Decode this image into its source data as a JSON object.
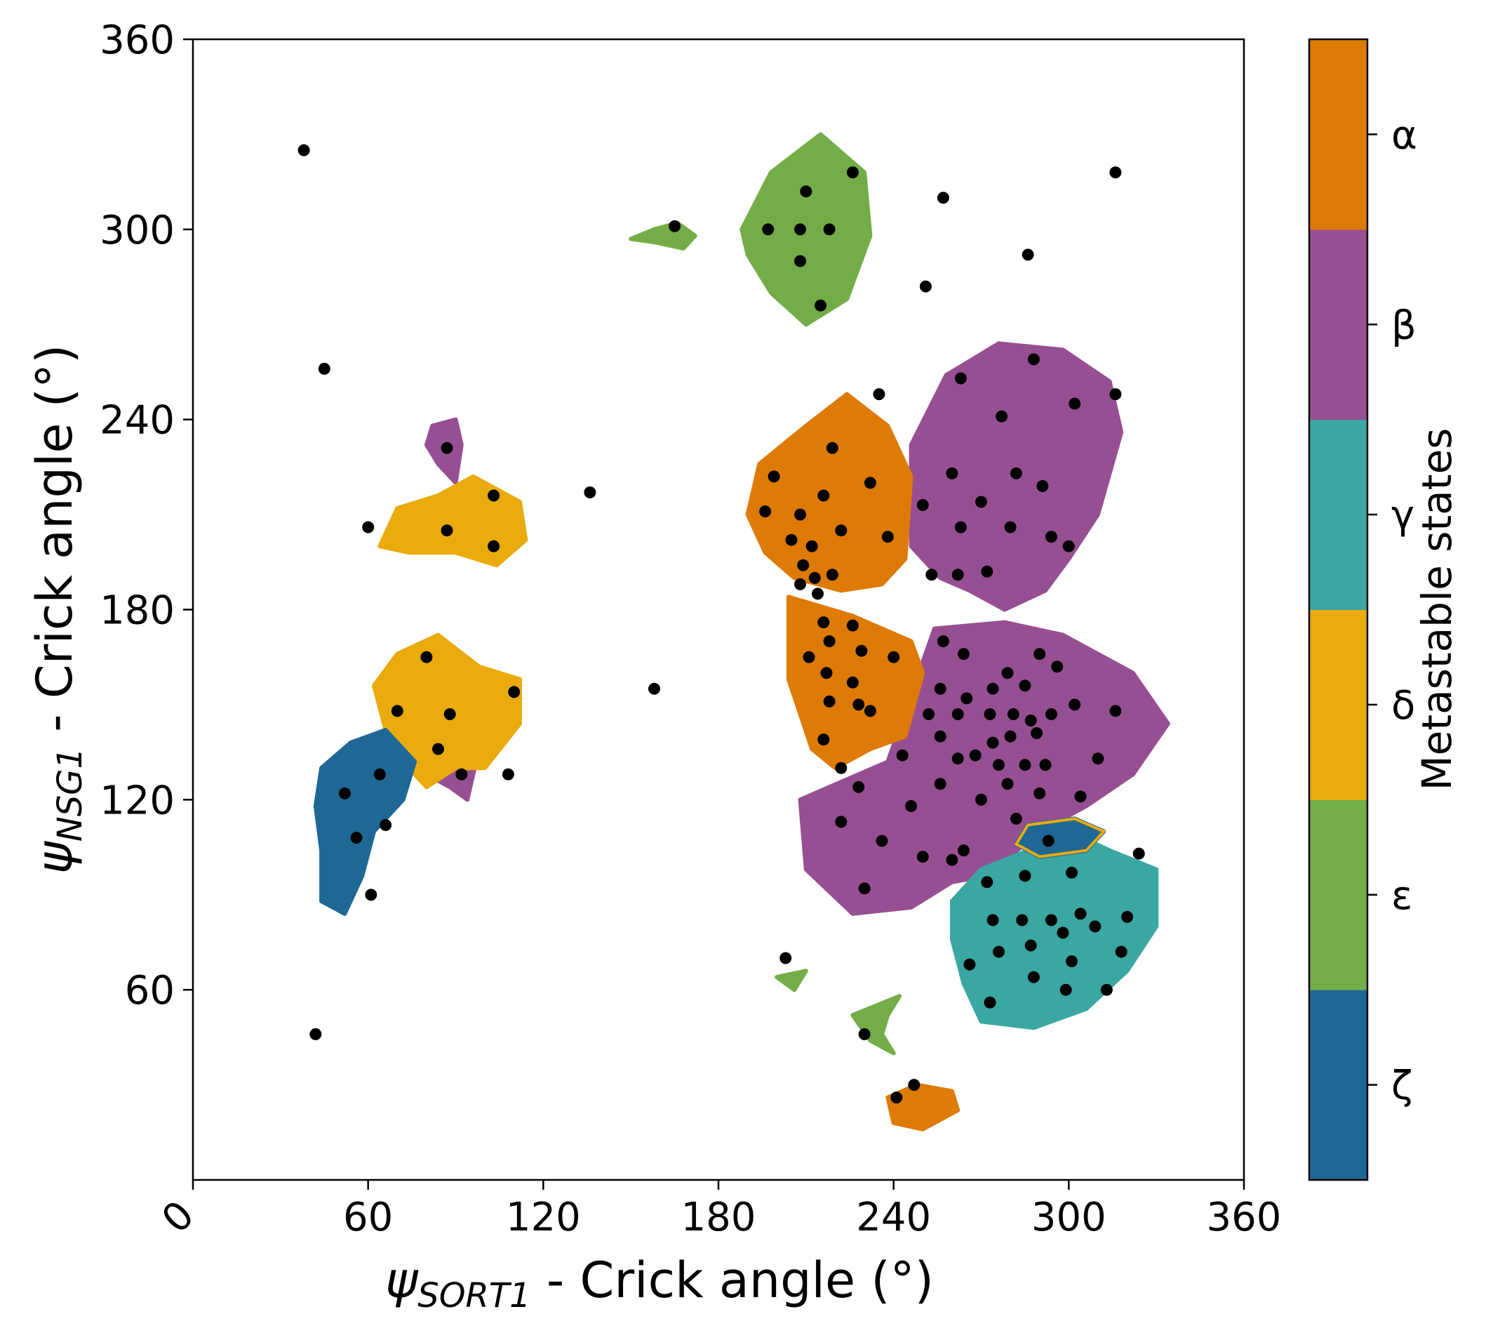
{
  "chart_data": {
    "type": "heatmap",
    "xlabel": {
      "symbol": "ψ",
      "subscript": "SORT1",
      "text": " - Crick angle (°)"
    },
    "ylabel": {
      "symbol": "ψ",
      "subscript": "NSG1",
      "text": " - Crick angle (°)"
    },
    "xlim": [
      0,
      360
    ],
    "ylim": [
      0,
      360
    ],
    "xticks": [
      "0",
      "60",
      "120",
      "180",
      "240",
      "300",
      "360"
    ],
    "yticks": [
      "60",
      "120",
      "180",
      "240",
      "300",
      "360"
    ],
    "grid": false,
    "colorbar": {
      "title": "Metastable states",
      "states": [
        {
          "label": "ζ",
          "color": "#1f6896"
        },
        {
          "label": "ε",
          "color": "#73ad47"
        },
        {
          "label": "δ",
          "color": "#e9ab0d"
        },
        {
          "label": "γ",
          "color": "#3aa7a3"
        },
        {
          "label": "β",
          "color": "#974f93"
        },
        {
          "label": "α",
          "color": "#de7a06"
        }
      ]
    },
    "regions": [
      {
        "state": "ε",
        "points": [
          [
            188,
            300
          ],
          [
            198,
            318
          ],
          [
            215,
            330
          ],
          [
            230,
            318
          ],
          [
            232,
            298
          ],
          [
            224,
            278
          ],
          [
            210,
            270
          ],
          [
            198,
            280
          ],
          [
            190,
            292
          ]
        ]
      },
      {
        "state": "ε",
        "points": [
          [
            150,
            297
          ],
          [
            158,
            300
          ],
          [
            166,
            302
          ],
          [
            172,
            298
          ],
          [
            168,
            294
          ],
          [
            158,
            296
          ]
        ]
      },
      {
        "state": "ε",
        "points": [
          [
            238,
            52
          ],
          [
            242,
            58
          ],
          [
            226,
            52
          ],
          [
            232,
            44
          ],
          [
            240,
            40
          ],
          [
            236,
            46
          ]
        ]
      },
      {
        "state": "ε",
        "points": [
          [
            200,
            64
          ],
          [
            210,
            66
          ],
          [
            206,
            60
          ]
        ]
      },
      {
        "state": "β",
        "points": [
          [
            82,
            238
          ],
          [
            90,
            240
          ],
          [
            92,
            232
          ],
          [
            90,
            220
          ],
          [
            84,
            226
          ],
          [
            80,
            232
          ]
        ]
      },
      {
        "state": "β",
        "points": [
          [
            78,
            160
          ],
          [
            86,
            158
          ],
          [
            96,
            150
          ],
          [
            98,
            136
          ],
          [
            94,
            120
          ],
          [
            88,
            124
          ],
          [
            80,
            128
          ],
          [
            76,
            140
          ]
        ]
      },
      {
        "state": "β",
        "points": [
          [
            246,
            232
          ],
          [
            258,
            254
          ],
          [
            276,
            264
          ],
          [
            298,
            262
          ],
          [
            314,
            252
          ],
          [
            318,
            236
          ],
          [
            310,
            210
          ],
          [
            300,
            196
          ],
          [
            292,
            186
          ],
          [
            278,
            180
          ],
          [
            266,
            186
          ],
          [
            256,
            190
          ],
          [
            246,
            200
          ]
        ]
      },
      {
        "state": "β",
        "points": [
          [
            208,
            120
          ],
          [
            210,
            98
          ],
          [
            226,
            84
          ],
          [
            246,
            86
          ],
          [
            260,
            94
          ],
          [
            272,
            96
          ],
          [
            290,
            110
          ],
          [
            306,
            118
          ],
          [
            322,
            128
          ],
          [
            334,
            144
          ],
          [
            322,
            160
          ],
          [
            298,
            172
          ],
          [
            278,
            176
          ],
          [
            254,
            174
          ],
          [
            238,
            132
          ],
          [
            218,
            124
          ]
        ]
      },
      {
        "state": "α",
        "points": [
          [
            190,
            210
          ],
          [
            194,
            226
          ],
          [
            210,
            238
          ],
          [
            224,
            248
          ],
          [
            238,
            238
          ],
          [
            246,
            222
          ],
          [
            244,
            196
          ],
          [
            236,
            188
          ],
          [
            222,
            186
          ],
          [
            206,
            190
          ],
          [
            196,
            198
          ]
        ]
      },
      {
        "state": "α",
        "points": [
          [
            204,
            184
          ],
          [
            226,
            178
          ],
          [
            246,
            170
          ],
          [
            250,
            160
          ],
          [
            244,
            140
          ],
          [
            232,
            136
          ],
          [
            220,
            130
          ],
          [
            212,
            136
          ],
          [
            204,
            158
          ]
        ]
      },
      {
        "state": "α",
        "points": [
          [
            238,
            26
          ],
          [
            248,
            30
          ],
          [
            260,
            28
          ],
          [
            262,
            22
          ],
          [
            250,
            16
          ],
          [
            240,
            18
          ]
        ]
      },
      {
        "state": "δ",
        "points": [
          [
            64,
            200
          ],
          [
            70,
            212
          ],
          [
            84,
            216
          ],
          [
            96,
            222
          ],
          [
            112,
            214
          ],
          [
            114,
            202
          ],
          [
            104,
            194
          ],
          [
            90,
            198
          ],
          [
            74,
            198
          ]
        ]
      },
      {
        "state": "δ",
        "points": [
          [
            62,
            156
          ],
          [
            70,
            166
          ],
          [
            84,
            172
          ],
          [
            98,
            162
          ],
          [
            112,
            158
          ],
          [
            112,
            144
          ],
          [
            100,
            130
          ],
          [
            90,
            130
          ],
          [
            80,
            124
          ],
          [
            74,
            130
          ],
          [
            66,
            142
          ]
        ]
      },
      {
        "state": "γ",
        "points": [
          [
            260,
            88
          ],
          [
            270,
            98
          ],
          [
            286,
            104
          ],
          [
            300,
            110
          ],
          [
            314,
            104
          ],
          [
            330,
            98
          ],
          [
            330,
            80
          ],
          [
            320,
            66
          ],
          [
            306,
            54
          ],
          [
            288,
            48
          ],
          [
            270,
            50
          ],
          [
            264,
            62
          ],
          [
            260,
            76
          ]
        ]
      },
      {
        "state": "ζ",
        "points": [
          [
            44,
            130
          ],
          [
            54,
            138
          ],
          [
            66,
            142
          ],
          [
            76,
            132
          ],
          [
            72,
            120
          ],
          [
            62,
            110
          ],
          [
            58,
            96
          ],
          [
            52,
            84
          ],
          [
            44,
            88
          ],
          [
            44,
            104
          ],
          [
            42,
            118
          ]
        ]
      },
      {
        "state": "ζ",
        "points": [
          [
            282,
            106
          ],
          [
            286,
            112
          ],
          [
            302,
            114
          ],
          [
            312,
            110
          ],
          [
            306,
            104
          ],
          [
            290,
            102
          ]
        ]
      }
    ],
    "points": [
      [
        38,
        325
      ],
      [
        45,
        256
      ],
      [
        60,
        206
      ],
      [
        87,
        231
      ],
      [
        103,
        216
      ],
      [
        103,
        200
      ],
      [
        87,
        205
      ],
      [
        80,
        165
      ],
      [
        70,
        148
      ],
      [
        88,
        147
      ],
      [
        92,
        128
      ],
      [
        84,
        136
      ],
      [
        64,
        128
      ],
      [
        52,
        122
      ],
      [
        56,
        108
      ],
      [
        66,
        112
      ],
      [
        61,
        90
      ],
      [
        42,
        46
      ],
      [
        136,
        217
      ],
      [
        158,
        155
      ],
      [
        108,
        128
      ],
      [
        110,
        154
      ],
      [
        165,
        301
      ],
      [
        210,
        312
      ],
      [
        197,
        300
      ],
      [
        208,
        300
      ],
      [
        218,
        300
      ],
      [
        208,
        290
      ],
      [
        215,
        276
      ],
      [
        226,
        318
      ],
      [
        257,
        310
      ],
      [
        251,
        282
      ],
      [
        286,
        292
      ],
      [
        316,
        318
      ],
      [
        219,
        231
      ],
      [
        199,
        222
      ],
      [
        232,
        220
      ],
      [
        196,
        211
      ],
      [
        208,
        210
      ],
      [
        216,
        216
      ],
      [
        222,
        205
      ],
      [
        205,
        202
      ],
      [
        212,
        200
      ],
      [
        238,
        203
      ],
      [
        209,
        194
      ],
      [
        213,
        190
      ],
      [
        208,
        188
      ],
      [
        219,
        191
      ],
      [
        214,
        185
      ],
      [
        216,
        176
      ],
      [
        226,
        175
      ],
      [
        211,
        165
      ],
      [
        218,
        170
      ],
      [
        229,
        167
      ],
      [
        240,
        165
      ],
      [
        217,
        160
      ],
      [
        226,
        157
      ],
      [
        218,
        151
      ],
      [
        228,
        150
      ],
      [
        232,
        148
      ],
      [
        216,
        139
      ],
      [
        222,
        130
      ],
      [
        235,
        248
      ],
      [
        263,
        253
      ],
      [
        302,
        245
      ],
      [
        316,
        248
      ],
      [
        288,
        259
      ],
      [
        277,
        241
      ],
      [
        260,
        223
      ],
      [
        270,
        214
      ],
      [
        282,
        223
      ],
      [
        250,
        213
      ],
      [
        280,
        206
      ],
      [
        263,
        206
      ],
      [
        291,
        219
      ],
      [
        300,
        200
      ],
      [
        253,
        191
      ],
      [
        262,
        191
      ],
      [
        272,
        192
      ],
      [
        294,
        203
      ],
      [
        257,
        170
      ],
      [
        264,
        166
      ],
      [
        279,
        160
      ],
      [
        290,
        166
      ],
      [
        296,
        162
      ],
      [
        285,
        156
      ],
      [
        274,
        155
      ],
      [
        265,
        152
      ],
      [
        256,
        155
      ],
      [
        273,
        147
      ],
      [
        281,
        147
      ],
      [
        287,
        145
      ],
      [
        294,
        147
      ],
      [
        289,
        141
      ],
      [
        280,
        140
      ],
      [
        274,
        138
      ],
      [
        268,
        134
      ],
      [
        262,
        133
      ],
      [
        276,
        131
      ],
      [
        285,
        131
      ],
      [
        292,
        131
      ],
      [
        279,
        125
      ],
      [
        290,
        122
      ],
      [
        270,
        120
      ],
      [
        256,
        125
      ],
      [
        243,
        134
      ],
      [
        256,
        140
      ],
      [
        252,
        147
      ],
      [
        262,
        147
      ],
      [
        302,
        150
      ],
      [
        310,
        133
      ],
      [
        316,
        148
      ],
      [
        304,
        121
      ],
      [
        282,
        114
      ],
      [
        264,
        104
      ],
      [
        236,
        107
      ],
      [
        246,
        118
      ],
      [
        228,
        124
      ],
      [
        222,
        113
      ],
      [
        230,
        92
      ],
      [
        260,
        101
      ],
      [
        250,
        102
      ],
      [
        293,
        107
      ],
      [
        324,
        103
      ],
      [
        301,
        97
      ],
      [
        285,
        96
      ],
      [
        272,
        94
      ],
      [
        304,
        84
      ],
      [
        320,
        83
      ],
      [
        294,
        82
      ],
      [
        284,
        82
      ],
      [
        274,
        82
      ],
      [
        287,
        74
      ],
      [
        298,
        78
      ],
      [
        309,
        80
      ],
      [
        318,
        72
      ],
      [
        276,
        72
      ],
      [
        301,
        69
      ],
      [
        266,
        68
      ],
      [
        288,
        64
      ],
      [
        299,
        60
      ],
      [
        313,
        60
      ],
      [
        273,
        56
      ],
      [
        203,
        70
      ],
      [
        230,
        46
      ],
      [
        241,
        26
      ],
      [
        247,
        30
      ]
    ]
  }
}
